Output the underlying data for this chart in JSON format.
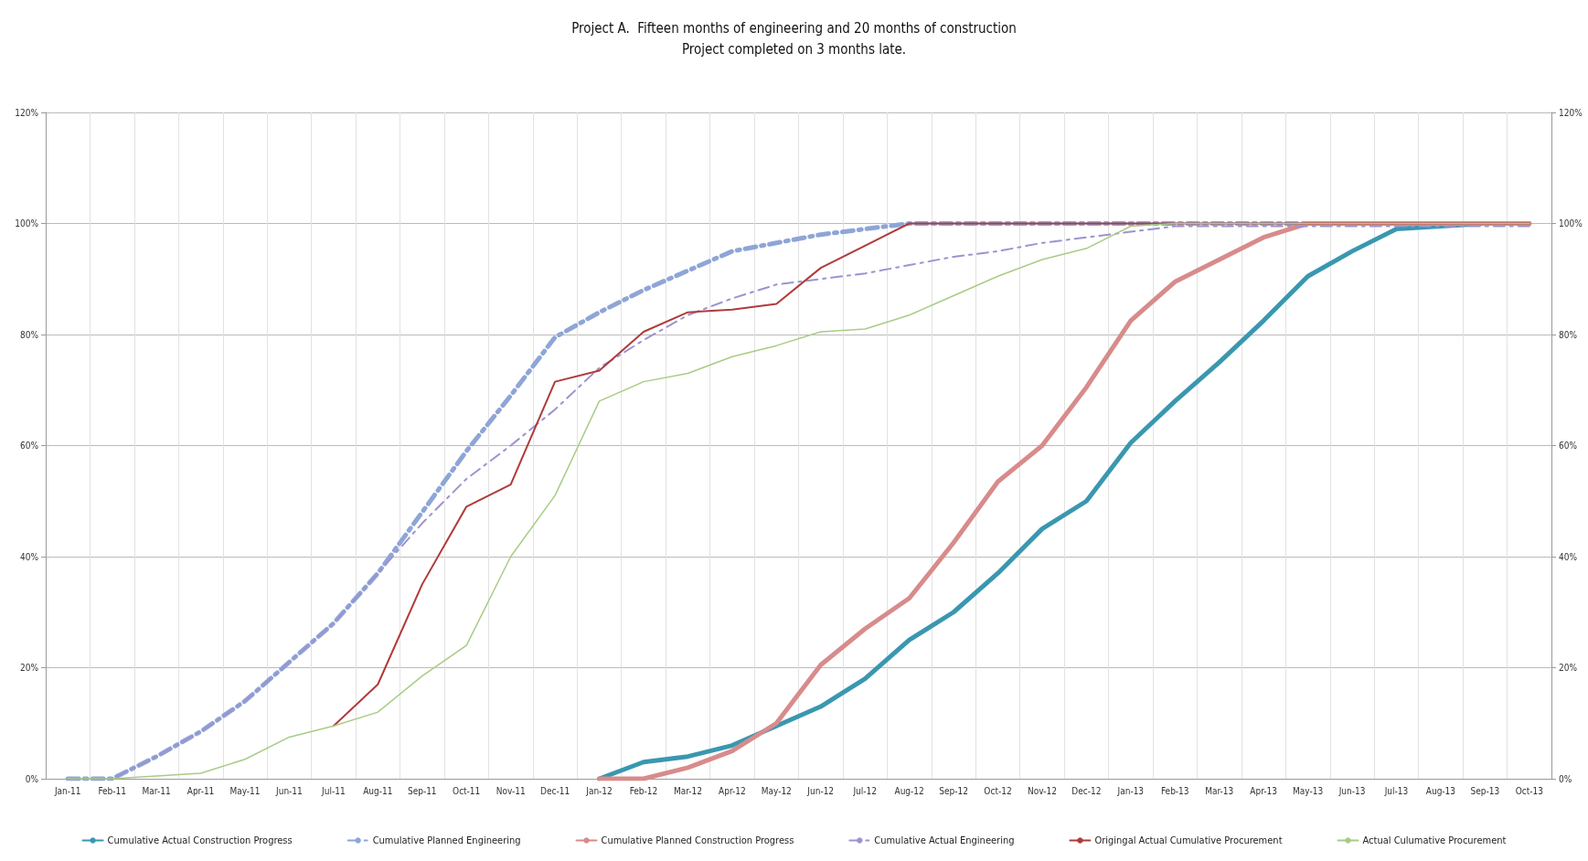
{
  "chart_data": {
    "type": "line",
    "title": "Project A.  Fifteen months of engineering and 20 months of construction",
    "subtitle": "Project completed on 3 months late.",
    "categories": [
      "Jan-11",
      "Feb-11",
      "Mar-11",
      "Apr-11",
      "May-11",
      "Jun-11",
      "Jul-11",
      "Aug-11",
      "Sep-11",
      "Oct-11",
      "Nov-11",
      "Dec-11",
      "Jan-12",
      "Feb-12",
      "Mar-12",
      "Apr-12",
      "May-12",
      "Jun-12",
      "Jul-12",
      "Aug-12",
      "Sep-12",
      "Oct-12",
      "Nov-12",
      "Dec-12",
      "Jan-13",
      "Feb-13",
      "Mar-13",
      "Apr-13",
      "May-13",
      "Jun-13",
      "Jul-13",
      "Aug-13",
      "Sep-13",
      "Oct-13"
    ],
    "series": [
      {
        "name": "Cumulative Actual Construction Progress",
        "color": "#3a97b0",
        "line_style": "solid",
        "values": [
          null,
          null,
          null,
          null,
          null,
          null,
          null,
          null,
          null,
          null,
          null,
          null,
          0,
          3,
          4,
          6,
          9.5,
          13,
          18,
          25,
          30,
          37,
          45,
          50,
          60.5,
          68,
          75,
          82.5,
          90.5,
          95,
          99,
          99.5,
          100,
          100
        ]
      },
      {
        "name": "Cumulative Planned Engineering",
        "color": "#8ea5d6",
        "line_style": "dashed",
        "values": [
          0,
          0,
          4,
          8.5,
          14,
          21,
          28,
          37,
          48,
          59,
          69,
          79.5,
          84,
          88,
          91.5,
          95,
          96.5,
          98,
          99,
          100,
          100,
          100,
          100,
          100,
          100,
          100,
          100,
          100,
          100,
          100,
          100,
          100,
          100,
          100
        ]
      },
      {
        "name": "Cumulative Planned Construction Progress",
        "color": "#d88b8b",
        "line_style": "solid",
        "values": [
          null,
          null,
          null,
          null,
          null,
          null,
          null,
          null,
          null,
          null,
          null,
          null,
          0,
          0,
          2,
          5,
          10,
          20.5,
          27,
          32.5,
          42.5,
          53.5,
          60,
          70.5,
          82.5,
          89.5,
          93.5,
          97.5,
          100,
          100,
          100,
          100,
          100,
          100
        ]
      },
      {
        "name": "Cumulative Actual Engineering",
        "color": "#9b93d0",
        "line_style": "dashed",
        "values": [
          0,
          0,
          4,
          8.5,
          14,
          21,
          28,
          37,
          46,
          54,
          60,
          66.5,
          74,
          79,
          83.5,
          86.5,
          89,
          90,
          91,
          92.5,
          94,
          95,
          96.5,
          97.5,
          98.5,
          99.5,
          99.5,
          99.5,
          99.5,
          99.5,
          99.5,
          99.5,
          99.5,
          99.5
        ]
      },
      {
        "name": "Origingal Actual Cumulative Procurement",
        "color": "#b03a3a",
        "line_style": "solid",
        "values": [
          null,
          null,
          null,
          null,
          null,
          null,
          9.5,
          17,
          35,
          49,
          53,
          71.5,
          73.5,
          80.5,
          84,
          84.5,
          85.5,
          92,
          96,
          100,
          100,
          100,
          100,
          100,
          100,
          100,
          100,
          100,
          100,
          100,
          100,
          100,
          100,
          100
        ]
      },
      {
        "name": "Actual Culumative Procurement",
        "color": "#a8cc84",
        "line_style": "solid",
        "values": [
          0,
          0,
          0.5,
          1,
          3.5,
          7.5,
          9.5,
          12,
          18.5,
          24,
          40,
          51,
          68,
          71.5,
          73,
          76,
          78,
          80.5,
          81,
          83.5,
          87,
          90.5,
          93.5,
          95.5,
          99.5,
          100,
          100,
          100,
          100,
          100,
          100,
          100,
          100,
          100
        ]
      }
    ],
    "ylim": [
      0,
      120
    ],
    "yticks": [
      {
        "value": 0,
        "label": "0%"
      },
      {
        "value": 20,
        "label": "20%"
      },
      {
        "value": 40,
        "label": "40%"
      },
      {
        "value": 60,
        "label": "60%"
      },
      {
        "value": 80,
        "label": "80%"
      },
      {
        "value": 100,
        "label": "100%"
      },
      {
        "value": 120,
        "label": "120%"
      }
    ],
    "y2lim": [
      0,
      120
    ],
    "y2ticks": [
      {
        "value": 0,
        "label": "0%"
      },
      {
        "value": 20,
        "label": "20%"
      },
      {
        "value": 40,
        "label": "40%"
      },
      {
        "value": 60,
        "label": "60%"
      },
      {
        "value": 80,
        "label": "80%"
      },
      {
        "value": 100,
        "label": "100%"
      },
      {
        "value": 120,
        "label": "120%"
      }
    ],
    "grid": true,
    "legend": "bottom",
    "marker": "none"
  }
}
